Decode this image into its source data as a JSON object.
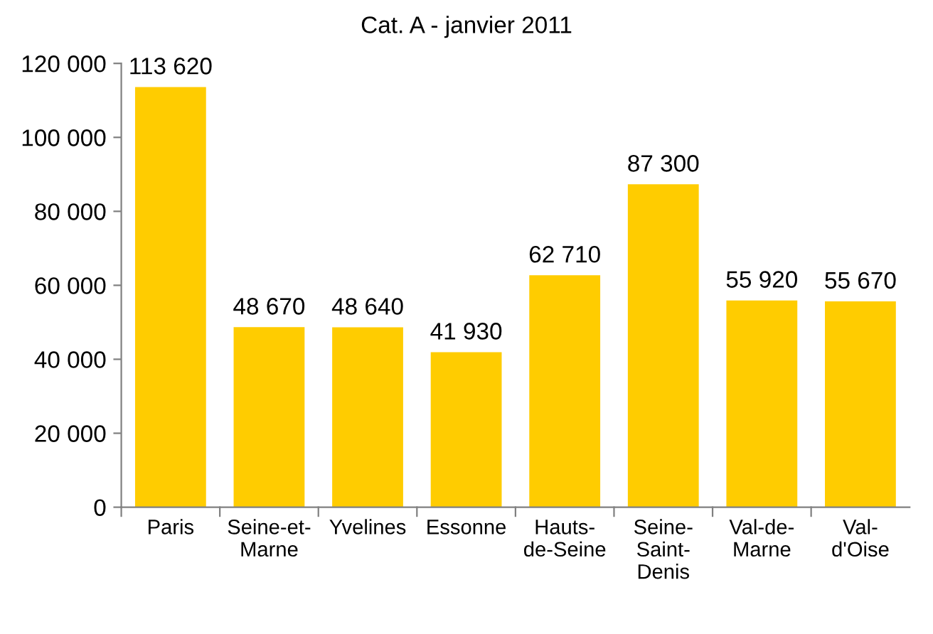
{
  "chart_data": {
    "type": "bar",
    "title": "Cat. A - janvier 2011",
    "categories": [
      "Paris",
      "Seine-et-\nMarne",
      "Yvelines",
      "Essonne",
      "Hauts-\nde-Seine",
      "Seine-\nSaint-\nDenis",
      "Val-de-\nMarne",
      "Val-\nd'Oise"
    ],
    "values": [
      113620,
      48670,
      48640,
      41930,
      62710,
      87300,
      55920,
      55670
    ],
    "value_labels": [
      "113 620",
      "48 670",
      "48 640",
      "41 930",
      "62 710",
      "87 300",
      "55 920",
      "55 670"
    ],
    "color": "#ffcc00",
    "ylim": [
      0,
      120000
    ],
    "yticks": [
      {
        "value": 0,
        "label": "0"
      },
      {
        "value": 20000,
        "label": "20 000"
      },
      {
        "value": 40000,
        "label": "40 000"
      },
      {
        "value": 60000,
        "label": "60 000"
      },
      {
        "value": 80000,
        "label": "80 000"
      },
      {
        "value": 100000,
        "label": "100 000"
      },
      {
        "value": 120000,
        "label": "120 000"
      }
    ],
    "grid": false,
    "legend": false
  }
}
